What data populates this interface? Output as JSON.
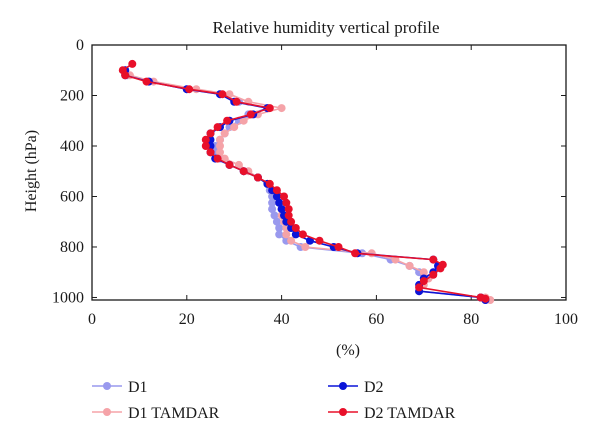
{
  "chart_data": {
    "type": "line",
    "title": "Relative humidity vertical profile",
    "xlabel": "(%)",
    "ylabel": "Height (hPa)",
    "xlim": [
      0,
      100
    ],
    "ylim": [
      1010,
      0
    ],
    "y_inverted": true,
    "x_ticks": [
      "0",
      "20",
      "40",
      "60",
      "80",
      "100"
    ],
    "y_ticks": [
      "0",
      "200",
      "400",
      "600",
      "800",
      "1000"
    ],
    "grid": false,
    "legend_position": "bottom",
    "series": [
      {
        "name": "D1",
        "color": "#9999ee",
        "points": [
          [
            7,
            100
          ],
          [
            7.5,
            120
          ],
          [
            12,
            145
          ],
          [
            20,
            175
          ],
          [
            27,
            195
          ],
          [
            31,
            225
          ],
          [
            37,
            250
          ],
          [
            33,
            275
          ],
          [
            31,
            300
          ],
          [
            29,
            325
          ],
          [
            28,
            350
          ],
          [
            27,
            375
          ],
          [
            26,
            400
          ],
          [
            26,
            425
          ],
          [
            27,
            450
          ],
          [
            29,
            475
          ],
          [
            32,
            500
          ],
          [
            35,
            525
          ],
          [
            37,
            550
          ],
          [
            37.5,
            575
          ],
          [
            38,
            600
          ],
          [
            38,
            625
          ],
          [
            38,
            650
          ],
          [
            38.5,
            675
          ],
          [
            39,
            700
          ],
          [
            39.5,
            725
          ],
          [
            39.5,
            750
          ],
          [
            41,
            775
          ],
          [
            44,
            800
          ],
          [
            57,
            825
          ],
          [
            63,
            850
          ],
          [
            67,
            875
          ],
          [
            69,
            900
          ],
          [
            70,
            925
          ],
          [
            69.5,
            950
          ],
          [
            69,
            975
          ],
          [
            82,
            1000
          ],
          [
            83,
            1010
          ]
        ]
      },
      {
        "name": "D1 TAMDAR",
        "color": "#f5a3a8",
        "points": [
          [
            7,
            100
          ],
          [
            8,
            120
          ],
          [
            13,
            145
          ],
          [
            22,
            175
          ],
          [
            29,
            195
          ],
          [
            33,
            225
          ],
          [
            40,
            250
          ],
          [
            35,
            275
          ],
          [
            32,
            300
          ],
          [
            30,
            325
          ],
          [
            28,
            350
          ],
          [
            27,
            375
          ],
          [
            27,
            400
          ],
          [
            27,
            425
          ],
          [
            28,
            450
          ],
          [
            31,
            475
          ],
          [
            33,
            500
          ],
          [
            35,
            525
          ],
          [
            37,
            550
          ],
          [
            38,
            575
          ],
          [
            39,
            600
          ],
          [
            39.5,
            625
          ],
          [
            40,
            650
          ],
          [
            40,
            675
          ],
          [
            40.5,
            700
          ],
          [
            41,
            725
          ],
          [
            41,
            750
          ],
          [
            42,
            775
          ],
          [
            45,
            800
          ],
          [
            59,
            825
          ],
          [
            64,
            850
          ],
          [
            67,
            875
          ],
          [
            70,
            900
          ],
          [
            71,
            925
          ],
          [
            70,
            950
          ],
          [
            69,
            975
          ],
          [
            83,
            1000
          ],
          [
            84,
            1010
          ]
        ]
      },
      {
        "name": "D2",
        "color": "#0a14d8",
        "points": [
          [
            7,
            100
          ],
          [
            7,
            120
          ],
          [
            12,
            145
          ],
          [
            20,
            175
          ],
          [
            27,
            195
          ],
          [
            30,
            225
          ],
          [
            37,
            250
          ],
          [
            34,
            275
          ],
          [
            29,
            300
          ],
          [
            27,
            325
          ],
          [
            25,
            350
          ],
          [
            25,
            375
          ],
          [
            25,
            400
          ],
          [
            25,
            425
          ],
          [
            26,
            450
          ],
          [
            29,
            475
          ],
          [
            32,
            500
          ],
          [
            35,
            525
          ],
          [
            37,
            550
          ],
          [
            38,
            575
          ],
          [
            39,
            600
          ],
          [
            39.5,
            625
          ],
          [
            40,
            650
          ],
          [
            40.5,
            675
          ],
          [
            41,
            700
          ],
          [
            42,
            725
          ],
          [
            43,
            750
          ],
          [
            46,
            775
          ],
          [
            51,
            800
          ],
          [
            56,
            825
          ],
          [
            72,
            850
          ],
          [
            73,
            875
          ],
          [
            72,
            900
          ],
          [
            70,
            925
          ],
          [
            69,
            950
          ],
          [
            69,
            975
          ],
          [
            82,
            1000
          ],
          [
            83,
            1010
          ]
        ]
      },
      {
        "name": "D2 TAMDAR",
        "color": "#e8102a",
        "points": [
          [
            8.5,
            75
          ],
          [
            6.5,
            100
          ],
          [
            7,
            120
          ],
          [
            11.5,
            145
          ],
          [
            20.5,
            175
          ],
          [
            27.5,
            195
          ],
          [
            30.5,
            225
          ],
          [
            37.5,
            250
          ],
          [
            33.5,
            275
          ],
          [
            28.5,
            300
          ],
          [
            26.5,
            325
          ],
          [
            25,
            350
          ],
          [
            24,
            375
          ],
          [
            24,
            400
          ],
          [
            25,
            425
          ],
          [
            26.5,
            450
          ],
          [
            29,
            475
          ],
          [
            32,
            500
          ],
          [
            35,
            525
          ],
          [
            37.5,
            550
          ],
          [
            39,
            575
          ],
          [
            40.5,
            600
          ],
          [
            41,
            625
          ],
          [
            41.5,
            650
          ],
          [
            41.5,
            675
          ],
          [
            42,
            700
          ],
          [
            43,
            725
          ],
          [
            44.5,
            750
          ],
          [
            48,
            775
          ],
          [
            52,
            800
          ],
          [
            55.5,
            825
          ],
          [
            72,
            850
          ],
          [
            74,
            870
          ],
          [
            73.5,
            885
          ],
          [
            72,
            910
          ],
          [
            70,
            935
          ],
          [
            69,
            960
          ],
          [
            82,
            1000
          ],
          [
            83,
            1005
          ]
        ]
      }
    ]
  }
}
